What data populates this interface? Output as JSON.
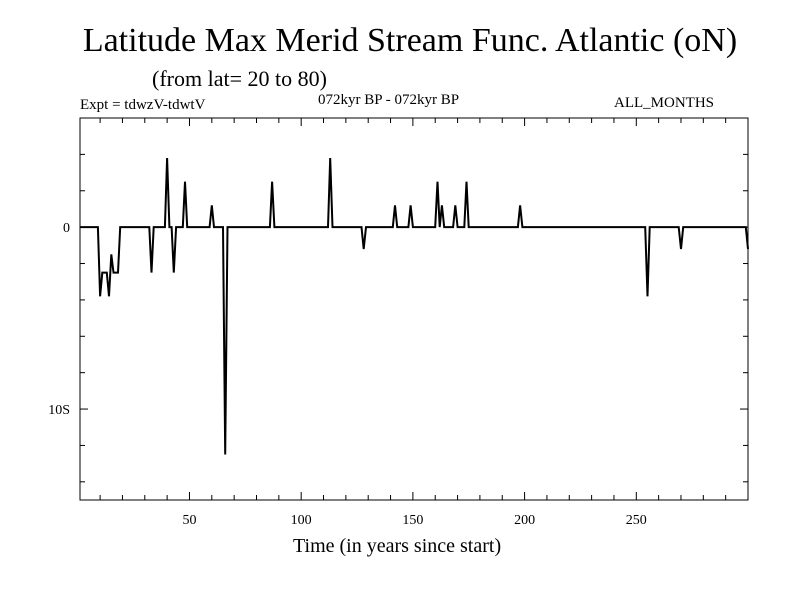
{
  "chart_data": {
    "type": "line",
    "title": "Latitude Max Merid Stream Func. Atlantic (oN)",
    "subtitle": "(from lat= 20 to 80)",
    "labels": {
      "experiment": "Expt = tdwzV-tdwtV",
      "period": "072kyr BP - 072kyr BP",
      "months": "ALL_MONTHS"
    },
    "xlabel": "Time (in years since start)",
    "ylabel": "",
    "xlim": [
      1,
      300
    ],
    "ylim": [
      -15,
      6
    ],
    "x_ticks": [
      {
        "value": 50,
        "label": "50"
      },
      {
        "value": 100,
        "label": "100"
      },
      {
        "value": 150,
        "label": "150"
      },
      {
        "value": 200,
        "label": "200"
      },
      {
        "value": 250,
        "label": "250"
      }
    ],
    "y_ticks": [
      {
        "value": 0,
        "label": "0"
      },
      {
        "value": -10,
        "label": "10S"
      }
    ],
    "x_minor_step": 10,
    "y_minor_step": 2,
    "grid": false,
    "series": [
      {
        "color": "#000000",
        "points": [
          [
            1,
            0
          ],
          [
            9,
            0
          ],
          [
            10,
            -3.8
          ],
          [
            11,
            -2.5
          ],
          [
            13,
            -2.5
          ],
          [
            14,
            -3.8
          ],
          [
            15,
            -1.5
          ],
          [
            16,
            -2.5
          ],
          [
            18,
            -2.5
          ],
          [
            19,
            0
          ],
          [
            32,
            0
          ],
          [
            33,
            -2.5
          ],
          [
            34,
            0
          ],
          [
            39,
            0
          ],
          [
            40,
            3.8
          ],
          [
            41,
            0
          ],
          [
            42,
            0
          ],
          [
            43,
            -2.5
          ],
          [
            44,
            0
          ],
          [
            47,
            0
          ],
          [
            48,
            2.5
          ],
          [
            49,
            0
          ],
          [
            59,
            0
          ],
          [
            60,
            1.2
          ],
          [
            61,
            0
          ],
          [
            65,
            0
          ],
          [
            66,
            -12.5
          ],
          [
            67,
            0
          ],
          [
            86,
            0
          ],
          [
            87,
            2.5
          ],
          [
            88,
            0
          ],
          [
            112,
            0
          ],
          [
            113,
            3.8
          ],
          [
            114,
            0
          ],
          [
            127,
            0
          ],
          [
            128,
            -1.2
          ],
          [
            129,
            0
          ],
          [
            141,
            0
          ],
          [
            142,
            1.2
          ],
          [
            143,
            0
          ],
          [
            148,
            0
          ],
          [
            149,
            1.2
          ],
          [
            150,
            0
          ],
          [
            160,
            0
          ],
          [
            161,
            2.5
          ],
          [
            162,
            0
          ],
          [
            163,
            1.2
          ],
          [
            164,
            0
          ],
          [
            168,
            0
          ],
          [
            169,
            1.2
          ],
          [
            170,
            0
          ],
          [
            173,
            0
          ],
          [
            174,
            2.5
          ],
          [
            175,
            0
          ],
          [
            197,
            0
          ],
          [
            198,
            1.2
          ],
          [
            199,
            0
          ],
          [
            254,
            0
          ],
          [
            255,
            -3.8
          ],
          [
            256,
            0
          ],
          [
            269,
            0
          ],
          [
            270,
            -1.2
          ],
          [
            271,
            0
          ],
          [
            299,
            0
          ],
          [
            300,
            -1.2
          ]
        ]
      }
    ]
  }
}
